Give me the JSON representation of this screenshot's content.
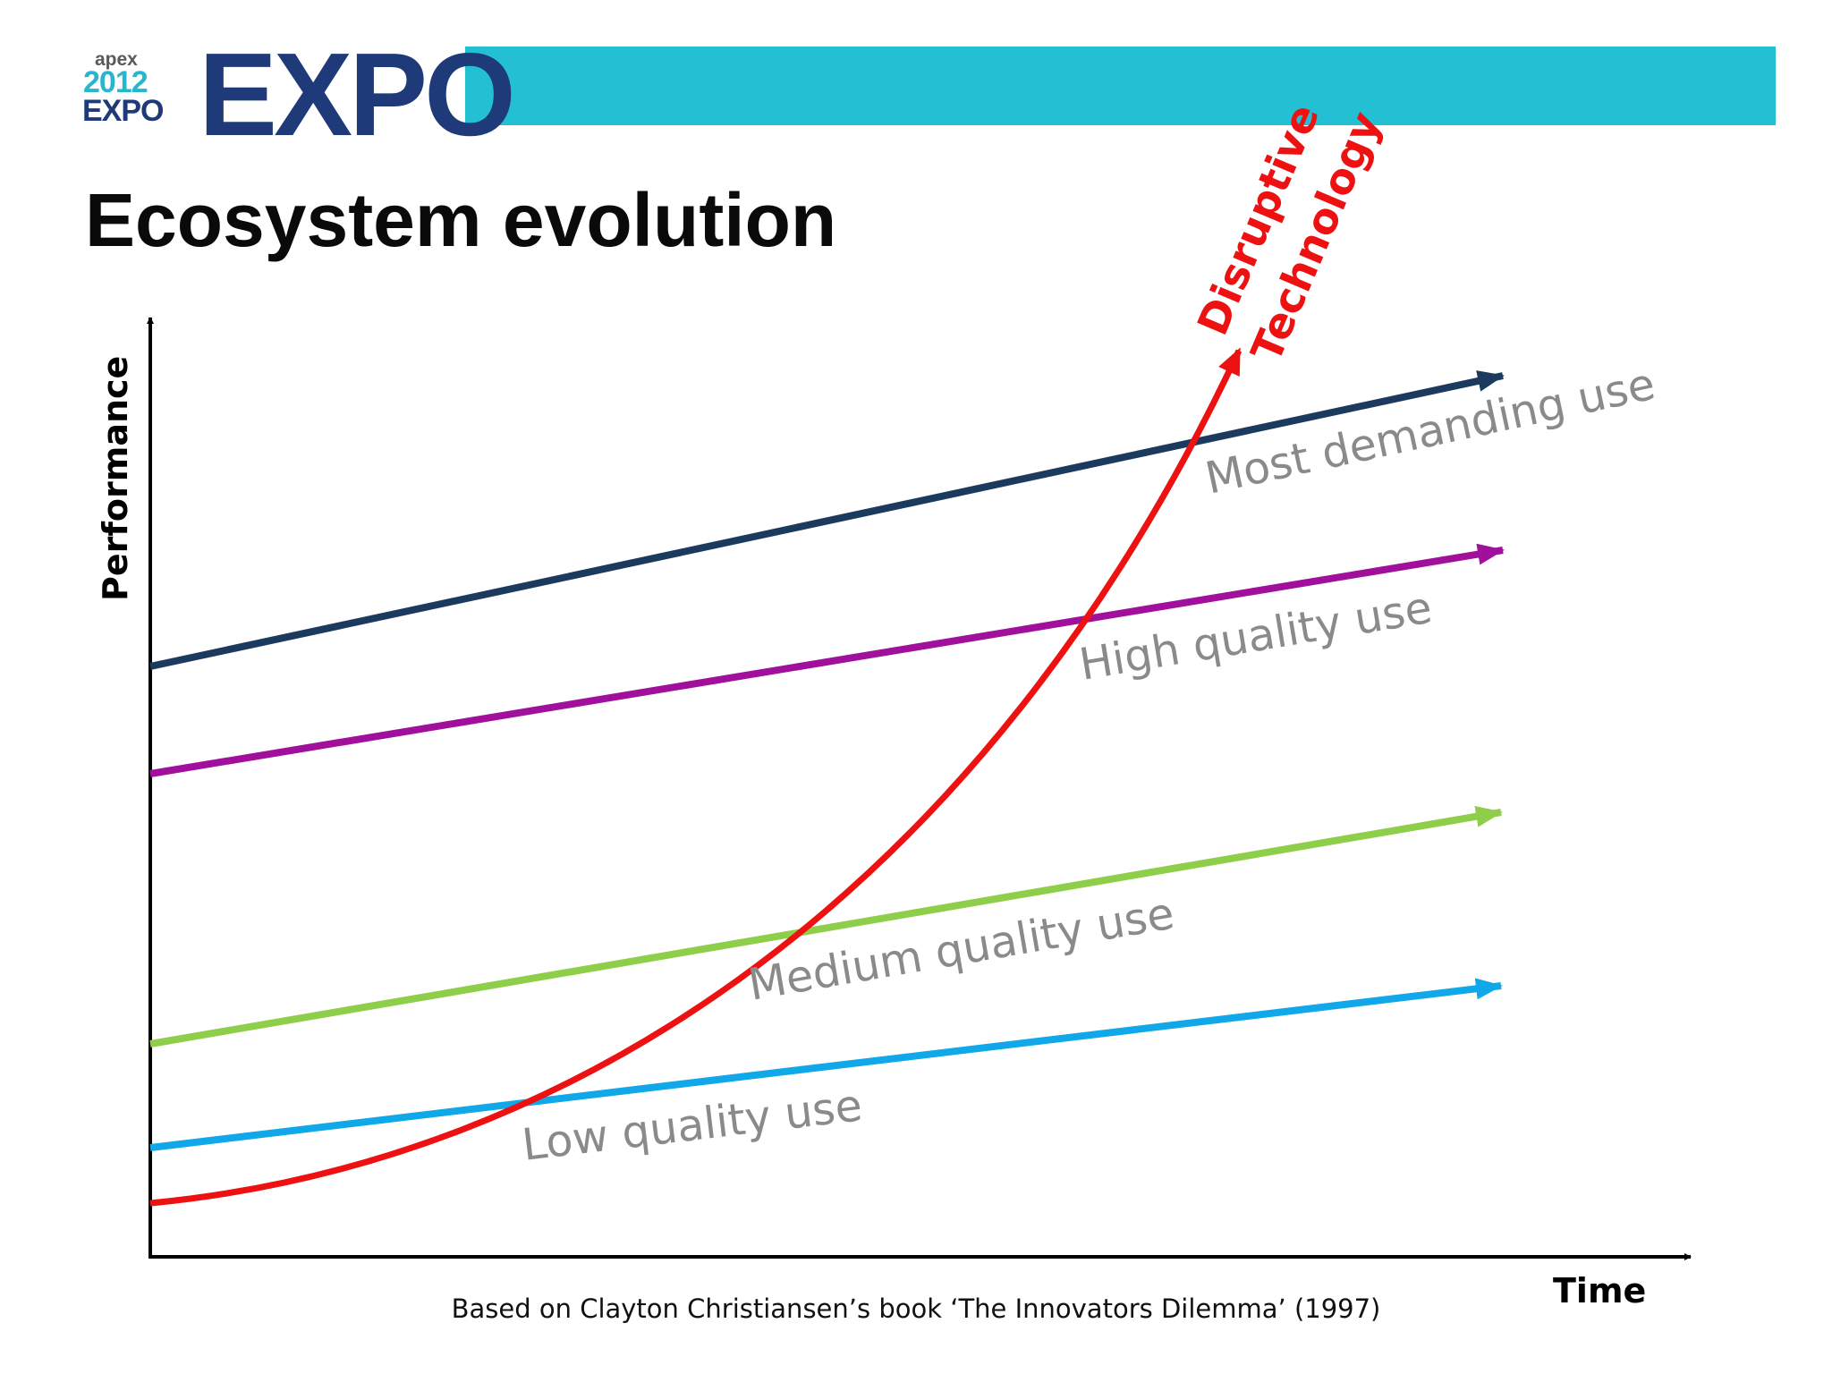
{
  "header": {
    "logo_small": {
      "apex": "apex",
      "year": "2012",
      "expo": "EXPO"
    },
    "logo_big_text": "EXPO",
    "band_color": "#23c0d4",
    "navy_color": "#1e3a78"
  },
  "title": "Ecosystem evolution",
  "diagram": {
    "y_axis_label": "Performance",
    "x_axis_label": "Time",
    "lines": [
      {
        "name": "Most demanding use",
        "color": "#1b3a5e"
      },
      {
        "name": "High quality use",
        "color": "#a0109c"
      },
      {
        "name": "Medium quality use",
        "color": "#8fce4a"
      },
      {
        "name": "Low quality use",
        "color": "#10a8e8"
      }
    ],
    "curve": {
      "label_line1": "Disruptive",
      "label_line2": "Technology",
      "color": "#ee1111"
    }
  },
  "footnote": "Based on Clayton Christiansen’s book ‘The Innovators Dilemma’ (1997)"
}
